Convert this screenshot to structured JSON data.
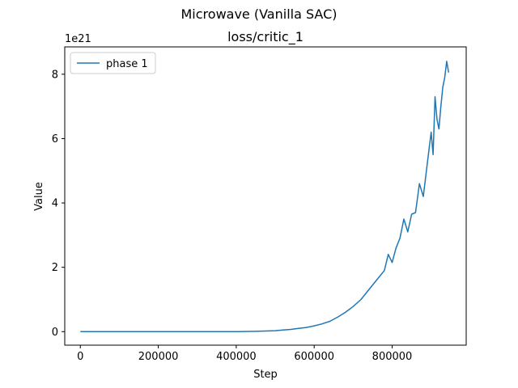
{
  "figure": {
    "suptitle": "Microwave (Vanilla SAC)"
  },
  "chart_data": {
    "type": "line",
    "title": "loss/critic_1",
    "xlabel": "Step",
    "ylabel": "Value",
    "y_offset_label": "1e21",
    "xlim": [
      -40000,
      990000
    ],
    "ylim": [
      -0.42,
      8.85
    ],
    "xticks": [
      0,
      200000,
      400000,
      600000,
      800000
    ],
    "xtick_labels": [
      "0",
      "200000",
      "400000",
      "600000",
      "800000"
    ],
    "yticks": [
      0,
      2,
      4,
      6,
      8
    ],
    "ytick_labels": [
      "0",
      "2",
      "4",
      "6",
      "8"
    ],
    "grid": false,
    "legend_position": "top-left",
    "series": [
      {
        "name": "phase 1",
        "color": "#1f77b4",
        "x": [
          0,
          100000,
          200000,
          300000,
          400000,
          450000,
          500000,
          520000,
          540000,
          560000,
          580000,
          600000,
          620000,
          640000,
          660000,
          680000,
          700000,
          720000,
          740000,
          760000,
          780000,
          790000,
          800000,
          810000,
          820000,
          830000,
          840000,
          850000,
          860000,
          870000,
          880000,
          890000,
          900000,
          905000,
          910000,
          915000,
          920000,
          925000,
          930000,
          935000,
          940000,
          945000
        ],
        "y": [
          0,
          0,
          0,
          0,
          0,
          0.01,
          0.03,
          0.05,
          0.07,
          0.1,
          0.13,
          0.18,
          0.24,
          0.32,
          0.45,
          0.6,
          0.78,
          1.0,
          1.3,
          1.6,
          1.9,
          2.4,
          2.15,
          2.6,
          2.9,
          3.5,
          3.1,
          3.65,
          3.7,
          4.6,
          4.2,
          5.2,
          6.2,
          5.5,
          7.3,
          6.6,
          6.3,
          7.0,
          7.6,
          7.9,
          8.4,
          8.05
        ]
      }
    ]
  }
}
